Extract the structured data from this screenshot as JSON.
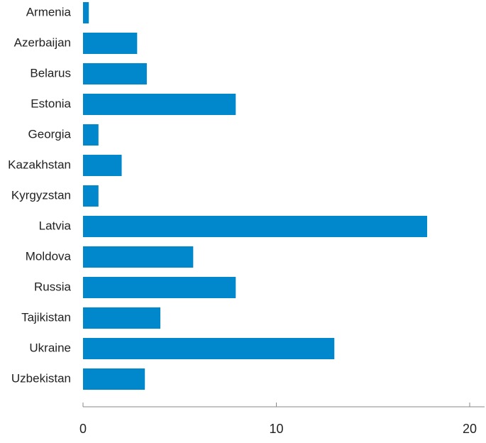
{
  "chart_data": {
    "type": "bar",
    "orientation": "horizontal",
    "categories": [
      "Armenia",
      "Azerbaijan",
      "Belarus",
      "Estonia",
      "Georgia",
      "Kazakhstan",
      "Kyrgyzstan",
      "Latvia",
      "Moldova",
      "Russia",
      "Tajikistan",
      "Ukraine",
      "Uzbekistan"
    ],
    "values": [
      0.3,
      2.8,
      3.3,
      7.9,
      0.8,
      2.0,
      0.8,
      17.8,
      5.7,
      7.9,
      4.0,
      13.0,
      3.2
    ],
    "title": "",
    "xlabel": "",
    "ylabel": "",
    "xlim": [
      0,
      20
    ],
    "xticks": [
      0,
      10,
      20
    ],
    "grid": false,
    "bar_color": "#0087cc",
    "axis_color": "#888888"
  }
}
